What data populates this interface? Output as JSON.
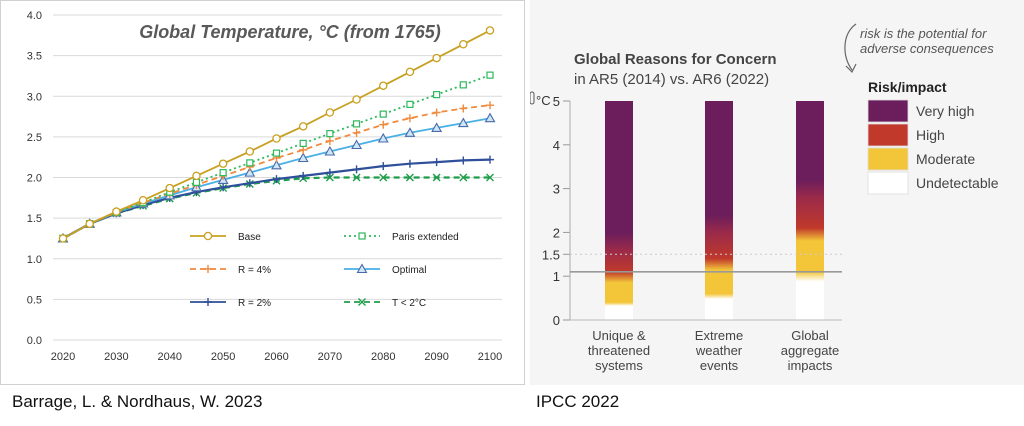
{
  "captions": {
    "left": "Barrage, L. & Nordhaus, W. 2023",
    "right": "IPCC 2022"
  },
  "chart_data": [
    {
      "type": "line",
      "title": "Global Temperature, °C (from 1765)",
      "xlabel": "",
      "ylabel": "",
      "x": [
        2020,
        2025,
        2030,
        2035,
        2040,
        2045,
        2050,
        2055,
        2060,
        2065,
        2070,
        2075,
        2080,
        2085,
        2090,
        2095,
        2100
      ],
      "xticks": [
        "2020",
        "2030",
        "2040",
        "2050",
        "2060",
        "2070",
        "2080",
        "2090",
        "2100"
      ],
      "xlim": [
        2020,
        2100
      ],
      "yticks": [
        "0.0",
        "0.5",
        "1.0",
        "1.5",
        "2.0",
        "2.5",
        "3.0",
        "3.5",
        "4.0"
      ],
      "ylim": [
        0,
        4
      ],
      "grid": "horizontal",
      "legend_position": "inside lower right",
      "series": [
        {
          "name": "Base",
          "color": "#c8a020",
          "dash": "solid",
          "marker": "circle",
          "values": [
            1.25,
            1.43,
            1.58,
            1.72,
            1.87,
            2.02,
            2.17,
            2.32,
            2.48,
            2.63,
            2.8,
            2.96,
            3.13,
            3.3,
            3.47,
            3.64,
            3.81
          ]
        },
        {
          "name": "Paris extended",
          "color": "#2eb85c",
          "dash": "dotted",
          "marker": "square",
          "values": [
            1.25,
            1.43,
            1.57,
            1.69,
            1.82,
            1.94,
            2.06,
            2.18,
            2.3,
            2.42,
            2.54,
            2.66,
            2.78,
            2.9,
            3.02,
            3.14,
            3.26
          ]
        },
        {
          "name": "R = 4%",
          "color": "#f08a3c",
          "dash": "dashed",
          "marker": "plus",
          "values": [
            1.25,
            1.43,
            1.57,
            1.69,
            1.8,
            1.91,
            2.02,
            2.13,
            2.24,
            2.34,
            2.45,
            2.55,
            2.65,
            2.73,
            2.8,
            2.85,
            2.89
          ]
        },
        {
          "name": "Optimal",
          "color": "#4ab0e6",
          "dash": "solid",
          "marker": "triangle",
          "values": [
            1.25,
            1.43,
            1.57,
            1.68,
            1.78,
            1.88,
            1.97,
            2.06,
            2.15,
            2.24,
            2.32,
            2.4,
            2.48,
            2.55,
            2.61,
            2.67,
            2.73
          ]
        },
        {
          "name": "R = 2%",
          "color": "#2f4f9a",
          "dash": "solid",
          "marker": "plus",
          "values": [
            1.25,
            1.43,
            1.56,
            1.66,
            1.75,
            1.82,
            1.88,
            1.93,
            1.98,
            2.02,
            2.06,
            2.1,
            2.14,
            2.17,
            2.19,
            2.21,
            2.22
          ]
        },
        {
          "name": "T < 2°C",
          "color": "#1e9e4a",
          "dash": "dashed",
          "marker": "x",
          "values": [
            1.25,
            1.43,
            1.56,
            1.65,
            1.74,
            1.81,
            1.87,
            1.92,
            1.96,
            1.99,
            2.0,
            2.0,
            2.0,
            2.0,
            2.0,
            2.0,
            2.0
          ]
        }
      ]
    },
    {
      "type": "heatmap",
      "title": "Global Reasons for Concern",
      "subtitle": "in AR5 (2014) vs. AR6 (2022)",
      "annotation": "risk is the potential for adverse consequences",
      "ylabel": "°C",
      "ylim": [
        0,
        5
      ],
      "yticks": [
        "0",
        "1",
        "1.5",
        "2",
        "3",
        "4",
        "5"
      ],
      "categories": [
        "Unique & threatened systems",
        "Extreme weather events",
        "Global aggregate impacts"
      ],
      "category_lines": [
        [
          "Unique &",
          "threatened",
          "systems"
        ],
        [
          "Extreme",
          "weather",
          "events"
        ],
        [
          "Global",
          "aggregate",
          "impacts"
        ]
      ],
      "legend_title": "Risk/impact",
      "legend": [
        {
          "label": "Very high",
          "color": "#6b1d5c"
        },
        {
          "label": "High",
          "color": "#c0392b"
        },
        {
          "label": "Moderate",
          "color": "#f3c63a"
        },
        {
          "label": "Undetectable",
          "color": "#ffffff"
        }
      ],
      "transitions": [
        {
          "category": "Unique & threatened systems",
          "undetectable_to_moderate": 0.4,
          "moderate_to_high": 0.9,
          "high_to_very_high": 1.6
        },
        {
          "category": "Extreme weather events",
          "undetectable_to_moderate": 0.6,
          "moderate_to_high": 1.2,
          "high_to_very_high": 2.0
        },
        {
          "category": "Global aggregate impacts",
          "undetectable_to_moderate": 1.1,
          "moderate_to_high": 1.9,
          "high_to_very_high": 2.8
        }
      ]
    }
  ]
}
